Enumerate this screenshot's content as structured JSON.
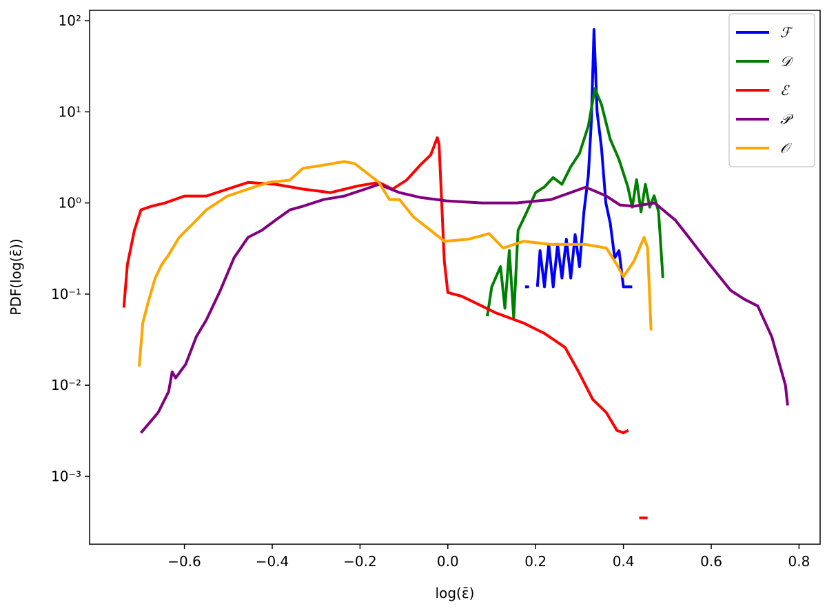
{
  "chart_data": {
    "type": "line",
    "xlabel": "log(ε̄)",
    "ylabel": "PDF(log(ε̄))",
    "xlim": [
      -0.816,
      0.848
    ],
    "ylim": [
      0.00018,
      130
    ],
    "yscale": "log",
    "grid": false,
    "legend": "upper right",
    "xticks": [
      {
        "value": -0.6,
        "label": "−0.6"
      },
      {
        "value": -0.4,
        "label": "−0.4"
      },
      {
        "value": -0.2,
        "label": "−0.2"
      },
      {
        "value": 0,
        "label": "0.0"
      },
      0.2,
      0.4,
      0.6,
      0.8
    ],
    "yticks": [
      {
        "value": 0.001,
        "label": "10⁻³"
      },
      {
        "value": 0.01,
        "label": "10⁻²"
      },
      {
        "value": 0.1,
        "label": "10⁻¹"
      },
      {
        "value": 1,
        "label": "10⁰"
      },
      {
        "value": 10,
        "label": "10¹"
      },
      {
        "value": 100,
        "label": "10²"
      }
    ],
    "series": [
      {
        "name": "ℱ",
        "color": "#0000ff",
        "x": [
          0.176,
          0.185,
          0.195,
          0.204,
          0.21,
          0.22,
          0.23,
          0.24,
          0.25,
          0.26,
          0.27,
          0.28,
          0.29,
          0.3,
          0.31,
          0.32,
          0.327,
          0.333,
          0.34,
          0.35,
          0.36,
          0.37,
          0.38,
          0.39,
          0.4,
          0.42
        ],
        "values": [
          0.12,
          0.12,
          null,
          0.12,
          0.3,
          0.12,
          0.35,
          0.12,
          0.35,
          0.15,
          0.4,
          0.15,
          0.45,
          0.2,
          0.8,
          2,
          8,
          80,
          10,
          4,
          1,
          0.6,
          0.25,
          0.3,
          0.12,
          0.12
        ]
      },
      {
        "name": "𝒟",
        "color": "#008000",
        "x": [
          0.09,
          0.1,
          0.12,
          0.13,
          0.14,
          0.15,
          0.16,
          0.18,
          0.2,
          0.22,
          0.24,
          0.26,
          0.28,
          0.3,
          0.32,
          0.335,
          0.35,
          0.37,
          0.39,
          0.41,
          0.42,
          0.43,
          0.44,
          0.45,
          0.46,
          0.47,
          0.48,
          0.49
        ],
        "values": [
          0.057,
          0.12,
          0.2,
          0.07,
          0.3,
          0.055,
          0.5,
          0.8,
          1.3,
          1.5,
          1.9,
          1.6,
          2.5,
          3.5,
          7,
          18,
          12,
          5,
          3,
          1.5,
          0.9,
          1.8,
          0.8,
          1.6,
          0.9,
          1.2,
          0.8,
          0.15
        ]
      },
      {
        "name": "ℰ",
        "color": "#ff0000",
        "x": [
          -0.738,
          -0.73,
          -0.714,
          -0.699,
          -0.675,
          -0.644,
          -0.6,
          -0.55,
          -0.502,
          -0.455,
          -0.392,
          -0.33,
          -0.267,
          -0.204,
          -0.157,
          -0.126,
          -0.094,
          -0.063,
          -0.039,
          -0.024,
          -0.02,
          -0.008,
          0.0,
          0.031,
          0.063,
          0.11,
          0.173,
          0.22,
          0.267,
          0.298,
          0.33,
          0.361,
          0.385,
          0.4,
          0.411,
          0.42,
          0.436,
          0.455
        ],
        "values": [
          0.071,
          0.21,
          0.5,
          0.84,
          0.92,
          1.0,
          1.19,
          1.19,
          1.42,
          1.68,
          1.6,
          1.42,
          1.3,
          1.54,
          1.68,
          1.42,
          1.78,
          2.6,
          3.37,
          5.2,
          4.4,
          0.23,
          0.104,
          0.095,
          0.08,
          0.062,
          0.048,
          0.037,
          0.026,
          0.014,
          0.007,
          0.005,
          0.0032,
          0.003,
          0.0032,
          null,
          0.00035,
          0.00035
        ]
      },
      {
        "name": "𝒫",
        "color": "#800080",
        "x": [
          -0.699,
          -0.66,
          -0.636,
          -0.628,
          -0.62,
          -0.597,
          -0.573,
          -0.55,
          -0.518,
          -0.487,
          -0.455,
          -0.424,
          -0.392,
          -0.36,
          -0.33,
          -0.283,
          -0.236,
          -0.188,
          -0.157,
          -0.11,
          -0.063,
          0.0,
          0.078,
          0.157,
          0.235,
          0.314,
          0.361,
          0.392,
          0.424,
          0.471,
          0.518,
          0.549,
          0.597,
          0.644,
          0.675,
          0.706,
          0.738,
          0.769,
          0.774
        ],
        "values": [
          0.003,
          0.005,
          0.0085,
          0.014,
          0.012,
          0.017,
          0.034,
          0.052,
          0.11,
          0.25,
          0.42,
          0.5,
          0.65,
          0.84,
          0.92,
          1.09,
          1.19,
          1.42,
          1.6,
          1.3,
          1.15,
          1.05,
          1.0,
          1.0,
          1.09,
          1.49,
          1.19,
          0.95,
          0.92,
          1.0,
          0.65,
          0.42,
          0.21,
          0.11,
          0.088,
          0.074,
          0.034,
          0.01,
          0.006
        ]
      },
      {
        "name": "𝒪",
        "color": "#ffa500",
        "x": [
          -0.703,
          -0.695,
          -0.683,
          -0.667,
          -0.652,
          -0.636,
          -0.612,
          -0.581,
          -0.55,
          -0.502,
          -0.455,
          -0.408,
          -0.36,
          -0.33,
          -0.283,
          -0.236,
          -0.212,
          -0.188,
          -0.157,
          -0.133,
          -0.11,
          -0.078,
          -0.039,
          -0.008,
          0.047,
          0.094,
          0.126,
          0.173,
          0.235,
          0.314,
          0.361,
          0.385,
          0.4,
          0.424,
          0.447,
          0.455,
          0.463
        ],
        "values": [
          0.016,
          0.048,
          0.08,
          0.148,
          0.21,
          0.27,
          0.42,
          0.59,
          0.84,
          1.19,
          1.42,
          1.68,
          1.78,
          2.4,
          2.6,
          2.85,
          2.7,
          2.2,
          1.68,
          1.09,
          1.09,
          0.7,
          0.5,
          0.38,
          0.4,
          0.46,
          0.32,
          0.38,
          0.35,
          0.35,
          0.32,
          0.21,
          0.155,
          0.23,
          0.42,
          0.32,
          0.04
        ]
      }
    ]
  }
}
